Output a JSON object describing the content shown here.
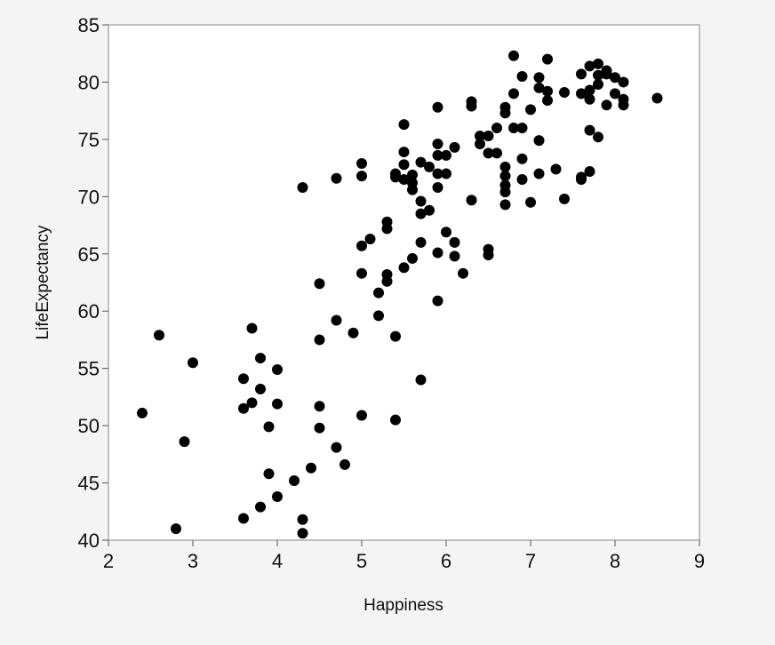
{
  "chart_data": {
    "type": "scatter",
    "title": "",
    "xlabel": "Happiness",
    "ylabel": "LifeExpectancy",
    "xlim": [
      2,
      9
    ],
    "ylim": [
      40,
      85
    ],
    "xticks": [
      "2",
      "3",
      "4",
      "5",
      "6",
      "7",
      "8",
      "9"
    ],
    "yticks": [
      "40",
      "45",
      "50",
      "55",
      "60",
      "65",
      "70",
      "75",
      "80",
      "85"
    ],
    "grid": false,
    "marker_color": "#000000",
    "points": [
      [
        2.4,
        51.1
      ],
      [
        2.6,
        57.9
      ],
      [
        2.8,
        41.0
      ],
      [
        2.9,
        48.6
      ],
      [
        3.0,
        55.5
      ],
      [
        3.6,
        54.1
      ],
      [
        3.6,
        51.5
      ],
      [
        3.6,
        41.9
      ],
      [
        3.7,
        58.5
      ],
      [
        3.7,
        52.0
      ],
      [
        3.8,
        55.9
      ],
      [
        3.8,
        53.2
      ],
      [
        3.8,
        42.9
      ],
      [
        3.9,
        49.9
      ],
      [
        3.9,
        45.8
      ],
      [
        4.0,
        54.9
      ],
      [
        4.0,
        51.9
      ],
      [
        4.0,
        43.8
      ],
      [
        4.2,
        45.2
      ],
      [
        4.3,
        70.8
      ],
      [
        4.3,
        41.8
      ],
      [
        4.3,
        40.6
      ],
      [
        4.4,
        46.3
      ],
      [
        4.5,
        62.4
      ],
      [
        4.5,
        57.5
      ],
      [
        4.5,
        51.7
      ],
      [
        4.5,
        49.8
      ],
      [
        4.7,
        71.6
      ],
      [
        4.7,
        59.2
      ],
      [
        4.7,
        48.1
      ],
      [
        4.8,
        46.6
      ],
      [
        4.9,
        58.1
      ],
      [
        5.0,
        72.9
      ],
      [
        5.0,
        71.8
      ],
      [
        5.0,
        65.7
      ],
      [
        5.0,
        63.3
      ],
      [
        5.0,
        50.9
      ],
      [
        5.1,
        66.3
      ],
      [
        5.2,
        61.6
      ],
      [
        5.2,
        59.6
      ],
      [
        5.3,
        67.8
      ],
      [
        5.3,
        67.2
      ],
      [
        5.3,
        63.2
      ],
      [
        5.3,
        62.6
      ],
      [
        5.4,
        72.0
      ],
      [
        5.4,
        71.7
      ],
      [
        5.4,
        57.8
      ],
      [
        5.4,
        50.5
      ],
      [
        5.5,
        76.3
      ],
      [
        5.5,
        73.9
      ],
      [
        5.5,
        72.8
      ],
      [
        5.5,
        71.5
      ],
      [
        5.5,
        63.8
      ],
      [
        5.6,
        71.9
      ],
      [
        5.6,
        71.2
      ],
      [
        5.6,
        70.6
      ],
      [
        5.6,
        64.6
      ],
      [
        5.7,
        73.0
      ],
      [
        5.7,
        69.6
      ],
      [
        5.7,
        68.5
      ],
      [
        5.7,
        66.0
      ],
      [
        5.7,
        54.0
      ],
      [
        5.8,
        72.6
      ],
      [
        5.8,
        68.8
      ],
      [
        5.9,
        77.8
      ],
      [
        5.9,
        74.6
      ],
      [
        5.9,
        73.6
      ],
      [
        5.9,
        72.0
      ],
      [
        5.9,
        70.8
      ],
      [
        5.9,
        65.1
      ],
      [
        5.9,
        60.9
      ],
      [
        6.0,
        73.6
      ],
      [
        6.0,
        72.0
      ],
      [
        6.0,
        66.9
      ],
      [
        6.1,
        74.3
      ],
      [
        6.1,
        66.0
      ],
      [
        6.1,
        64.8
      ],
      [
        6.2,
        63.3
      ],
      [
        6.3,
        78.3
      ],
      [
        6.3,
        77.9
      ],
      [
        6.3,
        69.7
      ],
      [
        6.4,
        75.3
      ],
      [
        6.4,
        74.6
      ],
      [
        6.5,
        75.3
      ],
      [
        6.5,
        73.8
      ],
      [
        6.5,
        65.4
      ],
      [
        6.5,
        64.9
      ],
      [
        6.6,
        76.0
      ],
      [
        6.6,
        73.8
      ],
      [
        6.7,
        77.8
      ],
      [
        6.7,
        77.3
      ],
      [
        6.7,
        72.6
      ],
      [
        6.7,
        71.8
      ],
      [
        6.7,
        71.0
      ],
      [
        6.7,
        70.4
      ],
      [
        6.7,
        69.3
      ],
      [
        6.8,
        82.3
      ],
      [
        6.8,
        79.0
      ],
      [
        6.8,
        76.0
      ],
      [
        6.9,
        80.5
      ],
      [
        6.9,
        76.0
      ],
      [
        6.9,
        73.3
      ],
      [
        6.9,
        71.5
      ],
      [
        7.0,
        77.6
      ],
      [
        7.0,
        69.5
      ],
      [
        7.1,
        80.4
      ],
      [
        7.1,
        79.5
      ],
      [
        7.1,
        74.9
      ],
      [
        7.1,
        72.0
      ],
      [
        7.2,
        82.0
      ],
      [
        7.2,
        79.2
      ],
      [
        7.2,
        78.4
      ],
      [
        7.3,
        72.4
      ],
      [
        7.4,
        79.1
      ],
      [
        7.4,
        69.8
      ],
      [
        7.6,
        80.7
      ],
      [
        7.6,
        79.0
      ],
      [
        7.6,
        71.7
      ],
      [
        7.6,
        71.5
      ],
      [
        7.7,
        81.4
      ],
      [
        7.7,
        79.3
      ],
      [
        7.7,
        78.5
      ],
      [
        7.7,
        75.8
      ],
      [
        7.7,
        72.2
      ],
      [
        7.8,
        81.6
      ],
      [
        7.8,
        80.6
      ],
      [
        7.8,
        79.8
      ],
      [
        7.8,
        75.2
      ],
      [
        7.9,
        81.0
      ],
      [
        7.9,
        80.7
      ],
      [
        7.9,
        78.0
      ],
      [
        8.0,
        80.4
      ],
      [
        8.0,
        79.0
      ],
      [
        8.1,
        80.0
      ],
      [
        8.1,
        78.5
      ],
      [
        8.1,
        78.0
      ],
      [
        8.5,
        78.6
      ]
    ]
  }
}
